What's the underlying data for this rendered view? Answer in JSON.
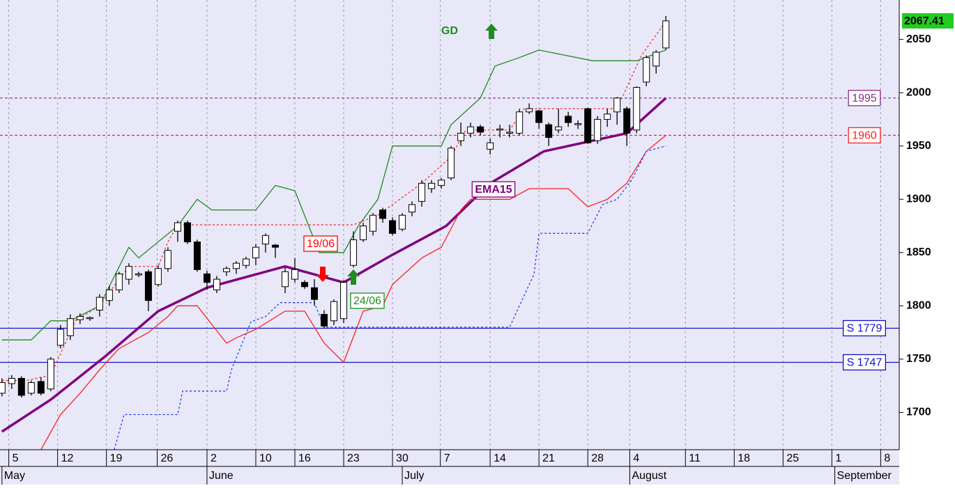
{
  "chart_data": {
    "type": "candlestick",
    "xlim": [
      -0.2,
      91.9
    ],
    "ylim": [
      1665,
      2087
    ],
    "yticks": [
      1700,
      1750,
      1800,
      1850,
      1900,
      1950,
      2000,
      2050
    ],
    "xticks": [
      {
        "value": 0.7,
        "label": "5"
      },
      {
        "value": 5.7,
        "label": "12"
      },
      {
        "value": 10.7,
        "label": "19"
      },
      {
        "value": 15.9,
        "label": "26"
      },
      {
        "value": 21,
        "label": "2"
      },
      {
        "value": 26,
        "label": "10"
      },
      {
        "value": 30,
        "label": "16"
      },
      {
        "value": 35,
        "label": "23"
      },
      {
        "value": 40,
        "label": "30"
      },
      {
        "value": 44.9,
        "label": "7"
      },
      {
        "value": 50,
        "label": "14"
      },
      {
        "value": 55,
        "label": "21"
      },
      {
        "value": 60,
        "label": "28"
      },
      {
        "value": 64.3,
        "label": "4"
      },
      {
        "value": 70,
        "label": "11"
      },
      {
        "value": 75,
        "label": "18"
      },
      {
        "value": 80,
        "label": "25"
      },
      {
        "value": 85,
        "label": "1"
      },
      {
        "value": 90,
        "label": "8"
      }
    ],
    "month_ticks": [
      {
        "value": 0,
        "label": "May"
      },
      {
        "value": 21,
        "label": "June"
      },
      {
        "value": 41,
        "label": "July"
      },
      {
        "value": 64.3,
        "label": "August"
      },
      {
        "value": 85.3,
        "label": "September"
      }
    ],
    "grid": true,
    "up_color": "#ffffff",
    "down_color": "#000000",
    "candles": {
      "open": [
        1718,
        1727,
        1732,
        1718,
        1729,
        1722,
        1763,
        1772,
        1787,
        1788,
        1796,
        1805,
        1815,
        1825,
        1829,
        1832,
        1820,
        1835,
        1870,
        1878,
        1860,
        1830,
        1815,
        1832,
        1835,
        1838,
        1845,
        1858,
        1857,
        1818,
        1825,
        1822,
        1817,
        1792,
        1786,
        1788,
        1838,
        1862,
        1870,
        1890,
        1880,
        1872,
        1888,
        1898,
        1910,
        1913,
        1920,
        1955,
        1962,
        1968,
        1947,
        1965,
        1962,
        1962,
        1982,
        1983,
        1970,
        1965,
        1978,
        1970,
        1985,
        1955,
        1975,
        1982,
        1985,
        1965,
        2010,
        2025,
        2042
      ],
      "high": [
        1732,
        1735,
        1734,
        1730,
        1733,
        1752,
        1782,
        1792,
        1793,
        1790,
        1811,
        1819,
        1832,
        1840,
        1832,
        1834,
        1838,
        1855,
        1880,
        1880,
        1862,
        1833,
        1828,
        1837,
        1842,
        1846,
        1858,
        1868,
        1858,
        1836,
        1845,
        1824,
        1825,
        1796,
        1806,
        1824,
        1870,
        1878,
        1887,
        1892,
        1883,
        1887,
        1898,
        1918,
        1918,
        1920,
        1950,
        1972,
        1972,
        1970,
        1957,
        1970,
        1970,
        1985,
        1990,
        1984,
        1972,
        1985,
        1982,
        1974,
        1986,
        1978,
        1985,
        1996,
        1987,
        2006,
        2035,
        2040,
        2072
      ],
      "low": [
        1715,
        1722,
        1714,
        1716,
        1716,
        1720,
        1760,
        1768,
        1783,
        1786,
        1790,
        1800,
        1812,
        1820,
        1827,
        1795,
        1818,
        1832,
        1860,
        1858,
        1832,
        1815,
        1812,
        1828,
        1830,
        1835,
        1838,
        1850,
        1845,
        1812,
        1822,
        1816,
        1800,
        1779,
        1782,
        1784,
        1836,
        1860,
        1866,
        1878,
        1866,
        1870,
        1884,
        1893,
        1906,
        1910,
        1918,
        1950,
        1958,
        1960,
        1942,
        1958,
        1958,
        1960,
        1980,
        1966,
        1950,
        1962,
        1968,
        1966,
        1952,
        1952,
        1968,
        1970,
        1950,
        1962,
        2006,
        2018,
        2040
      ],
      "close": [
        1728,
        1732,
        1716,
        1728,
        1718,
        1750,
        1778,
        1788,
        1790,
        1789,
        1808,
        1815,
        1830,
        1837,
        1830,
        1805,
        1835,
        1852,
        1878,
        1860,
        1834,
        1822,
        1825,
        1835,
        1840,
        1844,
        1855,
        1866,
        1855,
        1832,
        1834,
        1818,
        1806,
        1781,
        1804,
        1822,
        1862,
        1875,
        1885,
        1882,
        1868,
        1885,
        1895,
        1915,
        1915,
        1918,
        1948,
        1962,
        1968,
        1963,
        1953,
        1966,
        1963,
        1982,
        1985,
        1972,
        1958,
        1968,
        1972,
        1971,
        1953,
        1975,
        1980,
        1995,
        1962,
        2005,
        2033,
        2038,
        2067.41
      ]
    },
    "last_price_color": "#22cc22",
    "series": [
      {
        "name": "EMA15",
        "color": "#800080",
        "style": "solid",
        "width": 3.5,
        "x": [
          0,
          5,
          10.5,
          16,
          21,
          29,
          35,
          40,
          45.5,
          50,
          55.5,
          60.5,
          64,
          68
        ],
        "values": [
          1682,
          1712,
          1752,
          1795,
          1817,
          1837,
          1822,
          1848,
          1875,
          1915,
          1945,
          1955,
          1962,
          1995
        ]
      },
      {
        "color": "#1f8a1f",
        "style": "solid",
        "width": 1.3,
        "x": [
          0,
          3,
          5,
          7,
          10,
          13,
          14,
          18,
          20,
          21.5,
          26,
          28,
          30,
          32.5,
          35,
          36.5,
          38.5,
          40,
          45,
          46,
          49,
          50.5,
          53,
          55,
          60.5,
          65,
          68
        ],
        "values": [
          1768,
          1768,
          1786,
          1786,
          1800,
          1855,
          1845,
          1875,
          1900,
          1890,
          1890,
          1913,
          1908,
          1850,
          1850,
          1875,
          1900,
          1950,
          1950,
          1970,
          1995,
          2025,
          2033,
          2040,
          2030,
          2030,
          2040
        ]
      },
      {
        "color": "#ff2020",
        "style": "solid",
        "width": 1.3,
        "x": [
          4,
          6,
          8,
          10,
          12,
          15,
          17,
          18,
          20,
          23,
          24,
          26,
          29,
          31,
          33,
          35,
          37,
          39,
          40,
          43,
          45,
          47,
          48,
          52,
          54,
          58,
          60,
          62,
          64,
          66,
          68
        ],
        "values": [
          1665,
          1698,
          1718,
          1740,
          1760,
          1775,
          1790,
          1800,
          1800,
          1765,
          1770,
          1778,
          1795,
          1795,
          1765,
          1747,
          1795,
          1800,
          1820,
          1845,
          1855,
          1890,
          1900,
          1900,
          1910,
          1910,
          1893,
          1900,
          1915,
          1945,
          1960
        ]
      },
      {
        "color": "#2040ff",
        "style": "dotted",
        "width": 1.3,
        "x": [
          11.5,
          12.5,
          18,
          18.5,
          23,
          23.5,
          25.5,
          27,
          28.5,
          32,
          33,
          52,
          54.5,
          55,
          60,
          61.5,
          63,
          64.5,
          66,
          68
        ],
        "values": [
          1665,
          1698,
          1698,
          1720,
          1720,
          1740,
          1785,
          1790,
          1803,
          1803,
          1780,
          1780,
          1830,
          1868,
          1868,
          1895,
          1900,
          1918,
          1945,
          1950
        ]
      },
      {
        "color": "#ff2020",
        "style": "dotted",
        "width": 1.2,
        "x": [
          0,
          2.5,
          5,
          6.5,
          7.5,
          10,
          12,
          13,
          16,
          17,
          18,
          36,
          38.5,
          43,
          46,
          47.5,
          52,
          53.5,
          63,
          65.5,
          68
        ],
        "values": [
          1730,
          1730,
          1735,
          1765,
          1786,
          1800,
          1825,
          1837,
          1837,
          1860,
          1876,
          1876,
          1885,
          1915,
          1940,
          1965,
          1965,
          1985,
          1985,
          2035,
          2067
        ]
      }
    ],
    "levels": [
      {
        "value": 1995,
        "color": "#8b2b8b",
        "style": "dashed"
      },
      {
        "value": 1960,
        "color": "#ff2020",
        "style": "dashed"
      },
      {
        "value": 1779,
        "label": "S 1779",
        "color": "#1010cc",
        "style": "solid"
      },
      {
        "value": 1747,
        "label": "S 1747",
        "color": "#1010cc",
        "style": "solid"
      }
    ],
    "annotations": [
      {
        "text": "GD",
        "color": "#1e8c1e"
      },
      {
        "text": "19/06",
        "color": "#ff0000"
      },
      {
        "text": "24/06",
        "color": "#1e8c1e"
      }
    ]
  }
}
